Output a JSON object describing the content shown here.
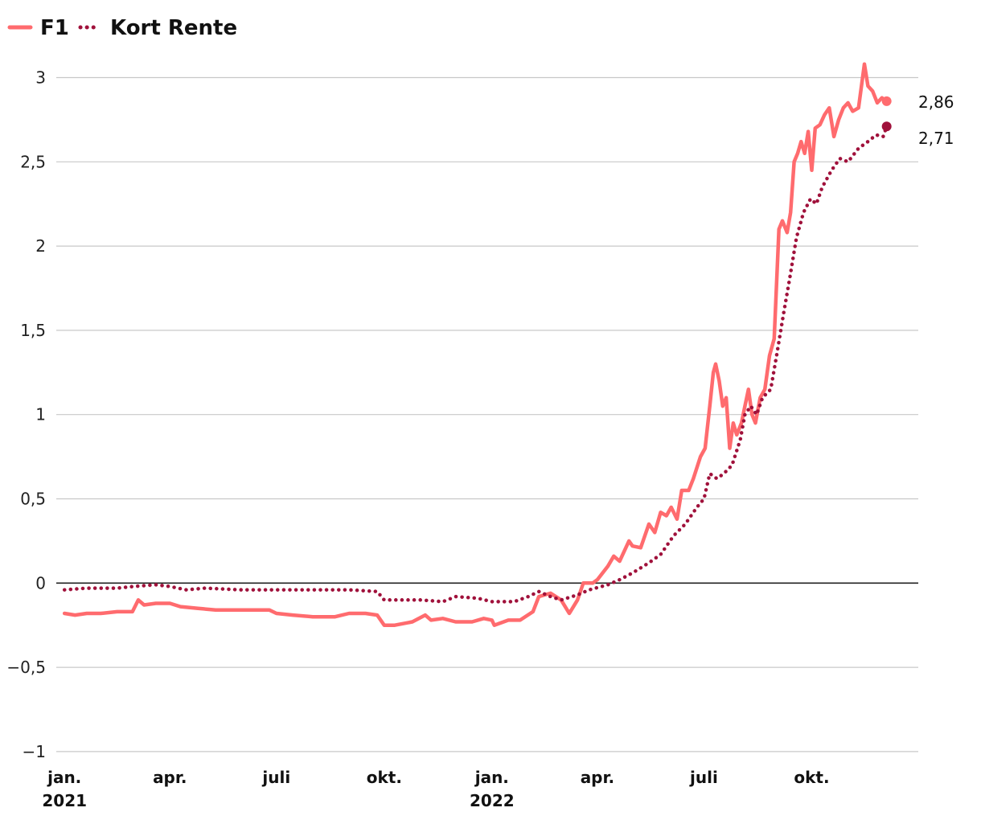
{
  "colors": {
    "f1": "#ff6b6e",
    "kort_rente": "#a0113b",
    "grid": "#c8c8c8",
    "zero": "#222222"
  },
  "legend": [
    {
      "name": "F1",
      "style": "solid"
    },
    {
      "name": "Kort Rente",
      "style": "dotted"
    }
  ],
  "end_labels": {
    "f1": "2,86",
    "kort_rente": "2,71"
  },
  "chart_data": {
    "type": "line",
    "title": "",
    "xlabel": "",
    "ylabel": "",
    "ylim": [
      -1,
      3.15
    ],
    "xlim": [
      "2020-12-25",
      "2022-12-31"
    ],
    "grid": true,
    "legend_position": "top-left",
    "y_ticks": [
      {
        "value": 3,
        "label": "3"
      },
      {
        "value": 2.5,
        "label": "2,5"
      },
      {
        "value": 2,
        "label": "2"
      },
      {
        "value": 1.5,
        "label": "1,5"
      },
      {
        "value": 1,
        "label": "1"
      },
      {
        "value": 0.5,
        "label": "0,5"
      },
      {
        "value": 0,
        "label": "0"
      },
      {
        "value": -0.5,
        "label": "−0,5"
      },
      {
        "value": -1,
        "label": "−1"
      }
    ],
    "x_ticks": [
      {
        "date": "2021-01-01",
        "label": "jan.",
        "sublabel": "2021"
      },
      {
        "date": "2021-04-01",
        "label": "apr.",
        "sublabel": ""
      },
      {
        "date": "2021-07-01",
        "label": "juli",
        "sublabel": ""
      },
      {
        "date": "2021-10-01",
        "label": "okt.",
        "sublabel": ""
      },
      {
        "date": "2022-01-01",
        "label": "jan.",
        "sublabel": "2022"
      },
      {
        "date": "2022-04-01",
        "label": "apr.",
        "sublabel": ""
      },
      {
        "date": "2022-07-01",
        "label": "juli",
        "sublabel": ""
      },
      {
        "date": "2022-10-01",
        "label": "okt.",
        "sublabel": ""
      }
    ],
    "series": [
      {
        "name": "F1",
        "style": "solid",
        "end_value": 2.86,
        "points": [
          [
            "2021-01-01",
            -0.18
          ],
          [
            "2021-01-10",
            -0.19
          ],
          [
            "2021-01-20",
            -0.18
          ],
          [
            "2021-02-01",
            -0.18
          ],
          [
            "2021-02-15",
            -0.17
          ],
          [
            "2021-02-28",
            -0.17
          ],
          [
            "2021-03-05",
            -0.1
          ],
          [
            "2021-03-10",
            -0.13
          ],
          [
            "2021-03-20",
            -0.12
          ],
          [
            "2021-04-01",
            -0.12
          ],
          [
            "2021-04-10",
            -0.14
          ],
          [
            "2021-04-25",
            -0.15
          ],
          [
            "2021-05-10",
            -0.16
          ],
          [
            "2021-05-25",
            -0.16
          ],
          [
            "2021-06-10",
            -0.16
          ],
          [
            "2021-06-25",
            -0.16
          ],
          [
            "2021-07-01",
            -0.18
          ],
          [
            "2021-07-15",
            -0.19
          ],
          [
            "2021-08-01",
            -0.2
          ],
          [
            "2021-08-20",
            -0.2
          ],
          [
            "2021-09-01",
            -0.18
          ],
          [
            "2021-09-15",
            -0.18
          ],
          [
            "2021-09-25",
            -0.19
          ],
          [
            "2021-10-01",
            -0.25
          ],
          [
            "2021-10-10",
            -0.25
          ],
          [
            "2021-10-25",
            -0.23
          ],
          [
            "2021-11-05",
            -0.19
          ],
          [
            "2021-11-10",
            -0.22
          ],
          [
            "2021-11-20",
            -0.21
          ],
          [
            "2021-12-01",
            -0.23
          ],
          [
            "2021-12-15",
            -0.23
          ],
          [
            "2021-12-25",
            -0.21
          ],
          [
            "2022-01-01",
            -0.22
          ],
          [
            "2022-01-03",
            -0.25
          ],
          [
            "2022-01-15",
            -0.22
          ],
          [
            "2022-01-25",
            -0.22
          ],
          [
            "2022-02-05",
            -0.17
          ],
          [
            "2022-02-10",
            -0.08
          ],
          [
            "2022-02-20",
            -0.06
          ],
          [
            "2022-03-01",
            -0.1
          ],
          [
            "2022-03-08",
            -0.18
          ],
          [
            "2022-03-15",
            -0.1
          ],
          [
            "2022-03-20",
            0.0
          ],
          [
            "2022-03-28",
            0.0
          ],
          [
            "2022-04-01",
            0.02
          ],
          [
            "2022-04-10",
            0.1
          ],
          [
            "2022-04-15",
            0.16
          ],
          [
            "2022-04-20",
            0.13
          ],
          [
            "2022-04-28",
            0.25
          ],
          [
            "2022-05-01",
            0.22
          ],
          [
            "2022-05-08",
            0.21
          ],
          [
            "2022-05-15",
            0.35
          ],
          [
            "2022-05-20",
            0.3
          ],
          [
            "2022-05-25",
            0.42
          ],
          [
            "2022-05-30",
            0.4
          ],
          [
            "2022-06-03",
            0.45
          ],
          [
            "2022-06-08",
            0.38
          ],
          [
            "2022-06-12",
            0.55
          ],
          [
            "2022-06-18",
            0.55
          ],
          [
            "2022-06-22",
            0.62
          ],
          [
            "2022-06-28",
            0.75
          ],
          [
            "2022-07-02",
            0.8
          ],
          [
            "2022-07-06",
            1.05
          ],
          [
            "2022-07-09",
            1.25
          ],
          [
            "2022-07-11",
            1.3
          ],
          [
            "2022-07-14",
            1.2
          ],
          [
            "2022-07-17",
            1.05
          ],
          [
            "2022-07-20",
            1.1
          ],
          [
            "2022-07-23",
            0.8
          ],
          [
            "2022-07-26",
            0.95
          ],
          [
            "2022-07-29",
            0.88
          ],
          [
            "2022-08-02",
            0.95
          ],
          [
            "2022-08-05",
            1.05
          ],
          [
            "2022-08-08",
            1.15
          ],
          [
            "2022-08-11",
            1.0
          ],
          [
            "2022-08-14",
            0.95
          ],
          [
            "2022-08-18",
            1.1
          ],
          [
            "2022-08-22",
            1.15
          ],
          [
            "2022-08-26",
            1.35
          ],
          [
            "2022-08-30",
            1.45
          ],
          [
            "2022-09-03",
            2.1
          ],
          [
            "2022-09-06",
            2.15
          ],
          [
            "2022-09-10",
            2.08
          ],
          [
            "2022-09-13",
            2.2
          ],
          [
            "2022-09-16",
            2.5
          ],
          [
            "2022-09-19",
            2.55
          ],
          [
            "2022-09-22",
            2.62
          ],
          [
            "2022-09-25",
            2.55
          ],
          [
            "2022-09-28",
            2.68
          ],
          [
            "2022-10-01",
            2.45
          ],
          [
            "2022-10-04",
            2.7
          ],
          [
            "2022-10-08",
            2.72
          ],
          [
            "2022-10-12",
            2.78
          ],
          [
            "2022-10-16",
            2.82
          ],
          [
            "2022-10-20",
            2.65
          ],
          [
            "2022-10-24",
            2.75
          ],
          [
            "2022-10-28",
            2.82
          ],
          [
            "2022-11-01",
            2.85
          ],
          [
            "2022-11-05",
            2.8
          ],
          [
            "2022-11-10",
            2.82
          ],
          [
            "2022-11-15",
            3.08
          ],
          [
            "2022-11-18",
            2.95
          ],
          [
            "2022-11-22",
            2.92
          ],
          [
            "2022-11-26",
            2.85
          ],
          [
            "2022-11-30",
            2.88
          ],
          [
            "2022-12-04",
            2.86
          ]
        ]
      },
      {
        "name": "Kort Rente",
        "style": "dotted",
        "end_value": 2.71,
        "points": [
          [
            "2021-01-01",
            -0.04
          ],
          [
            "2021-01-20",
            -0.03
          ],
          [
            "2021-02-15",
            -0.03
          ],
          [
            "2021-03-01",
            -0.02
          ],
          [
            "2021-03-20",
            -0.01
          ],
          [
            "2021-04-01",
            -0.02
          ],
          [
            "2021-04-15",
            -0.04
          ],
          [
            "2021-05-01",
            -0.03
          ],
          [
            "2021-06-01",
            -0.04
          ],
          [
            "2021-07-01",
            -0.04
          ],
          [
            "2021-08-01",
            -0.04
          ],
          [
            "2021-09-01",
            -0.04
          ],
          [
            "2021-09-25",
            -0.05
          ],
          [
            "2021-10-01",
            -0.1
          ],
          [
            "2021-11-01",
            -0.1
          ],
          [
            "2021-11-20",
            -0.11
          ],
          [
            "2021-12-01",
            -0.08
          ],
          [
            "2021-12-20",
            -0.09
          ],
          [
            "2022-01-01",
            -0.11
          ],
          [
            "2022-01-20",
            -0.11
          ],
          [
            "2022-02-01",
            -0.08
          ],
          [
            "2022-02-10",
            -0.05
          ],
          [
            "2022-02-20",
            -0.08
          ],
          [
            "2022-03-01",
            -0.1
          ],
          [
            "2022-03-15",
            -0.07
          ],
          [
            "2022-03-25",
            -0.04
          ],
          [
            "2022-04-10",
            -0.01
          ],
          [
            "2022-04-20",
            0.02
          ],
          [
            "2022-05-01",
            0.06
          ],
          [
            "2022-05-15",
            0.12
          ],
          [
            "2022-05-25",
            0.17
          ],
          [
            "2022-06-05",
            0.28
          ],
          [
            "2022-06-15",
            0.35
          ],
          [
            "2022-06-25",
            0.45
          ],
          [
            "2022-07-01",
            0.5
          ],
          [
            "2022-07-06",
            0.65
          ],
          [
            "2022-07-12",
            0.62
          ],
          [
            "2022-07-18",
            0.65
          ],
          [
            "2022-07-25",
            0.7
          ],
          [
            "2022-08-01",
            0.85
          ],
          [
            "2022-08-05",
            1.0
          ],
          [
            "2022-08-10",
            1.05
          ],
          [
            "2022-08-15",
            1.0
          ],
          [
            "2022-08-20",
            1.1
          ],
          [
            "2022-08-27",
            1.15
          ],
          [
            "2022-09-01",
            1.35
          ],
          [
            "2022-09-07",
            1.6
          ],
          [
            "2022-09-12",
            1.8
          ],
          [
            "2022-09-18",
            2.05
          ],
          [
            "2022-09-24",
            2.2
          ],
          [
            "2022-09-30",
            2.28
          ],
          [
            "2022-10-05",
            2.25
          ],
          [
            "2022-10-10",
            2.35
          ],
          [
            "2022-10-18",
            2.45
          ],
          [
            "2022-10-25",
            2.52
          ],
          [
            "2022-11-01",
            2.5
          ],
          [
            "2022-11-10",
            2.58
          ],
          [
            "2022-11-18",
            2.62
          ],
          [
            "2022-11-25",
            2.66
          ],
          [
            "2022-12-01",
            2.65
          ],
          [
            "2022-12-04",
            2.71
          ]
        ]
      }
    ]
  }
}
